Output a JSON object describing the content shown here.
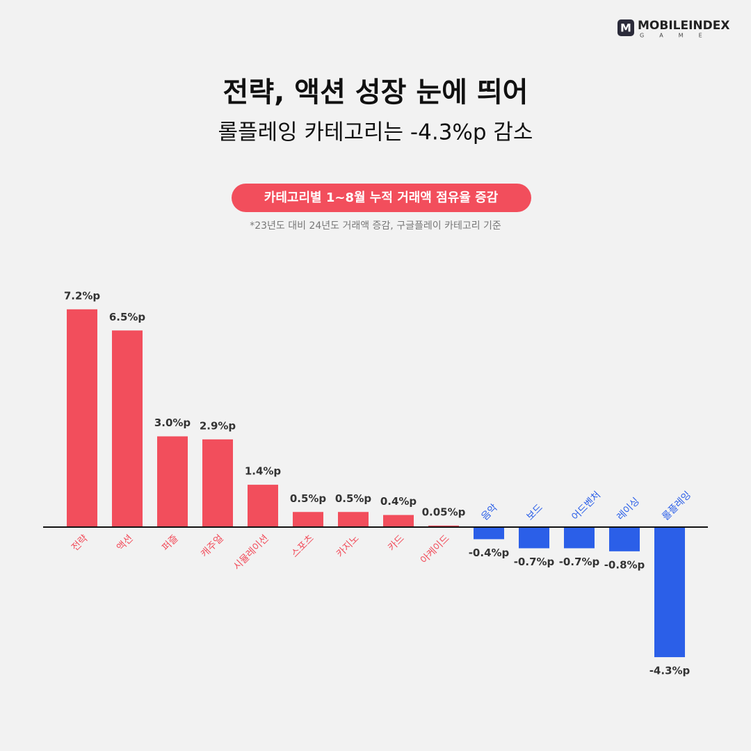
{
  "logo": {
    "mark": "M",
    "name": "MOBILEINDEX",
    "sub": "GAME"
  },
  "chart_data": {
    "type": "bar",
    "title": "전략, 액션 성장 눈에 띄어",
    "subtitle": "롤플레잉 카테고리는 -4.3%p 감소",
    "badge": "카테고리별 1~8월 누적 거래액 점유율 증감",
    "note": "*23년도 대비 24년도 거래액 증감, 구글플레이 카테고리 기준",
    "categories": [
      "전략",
      "액션",
      "퍼즐",
      "캐주얼",
      "시뮬레이션",
      "스포츠",
      "카지노",
      "카드",
      "아케이드",
      "음악",
      "보드",
      "어드벤처",
      "레이싱",
      "롤플레잉"
    ],
    "values": [
      7.2,
      6.5,
      3.0,
      2.9,
      1.4,
      0.5,
      0.5,
      0.4,
      0.05,
      -0.4,
      -0.7,
      -0.7,
      -0.8,
      -4.3
    ],
    "value_labels": [
      "7.2%p",
      "6.5%p",
      "3.0%p",
      "2.9%p",
      "1.4%p",
      "0.5%p",
      "0.5%p",
      "0.4%p",
      "0.05%p",
      "-0.4%p",
      "-0.7%p",
      "-0.7%p",
      "-0.8%p",
      "-4.3%p"
    ],
    "positive_color": "#f24e5c",
    "negative_color": "#2b5fe8"
  }
}
